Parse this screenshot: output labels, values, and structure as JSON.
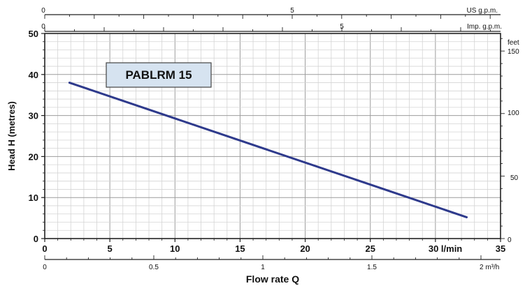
{
  "chart_data": {
    "type": "line",
    "title": "PABLRM 15",
    "xlabel": "Flow rate  Q",
    "ylabel": "Head H (metres)",
    "xlim": [
      0,
      35
    ],
    "ylim": [
      0,
      50
    ],
    "x_ticks": [
      "0",
      "5",
      "10",
      "15",
      "20",
      "25",
      "30 l/min",
      "35"
    ],
    "y_ticks": [
      "0",
      "10",
      "20",
      "30",
      "40",
      "50"
    ],
    "grid": true,
    "series": [
      {
        "name": "PABLRM 15",
        "x": [
          1.9,
          32.4
        ],
        "y": [
          38.0,
          5.2
        ],
        "color": "#2e3a8c"
      }
    ],
    "secondary_axes": {
      "top_us_gpm": {
        "label": "US g.p.m.",
        "ticks": [
          "0",
          "5"
        ]
      },
      "top_imp_gpm": {
        "label": "Imp. g.p.m.",
        "ticks": [
          "0",
          "5"
        ]
      },
      "bottom_m3h": {
        "label": "2 m³/h",
        "ticks": [
          "0",
          "0.5",
          "1",
          "1.5"
        ]
      },
      "right_feet": {
        "label": "feet",
        "ticks": [
          "0",
          "50",
          "100",
          "150"
        ]
      }
    }
  }
}
